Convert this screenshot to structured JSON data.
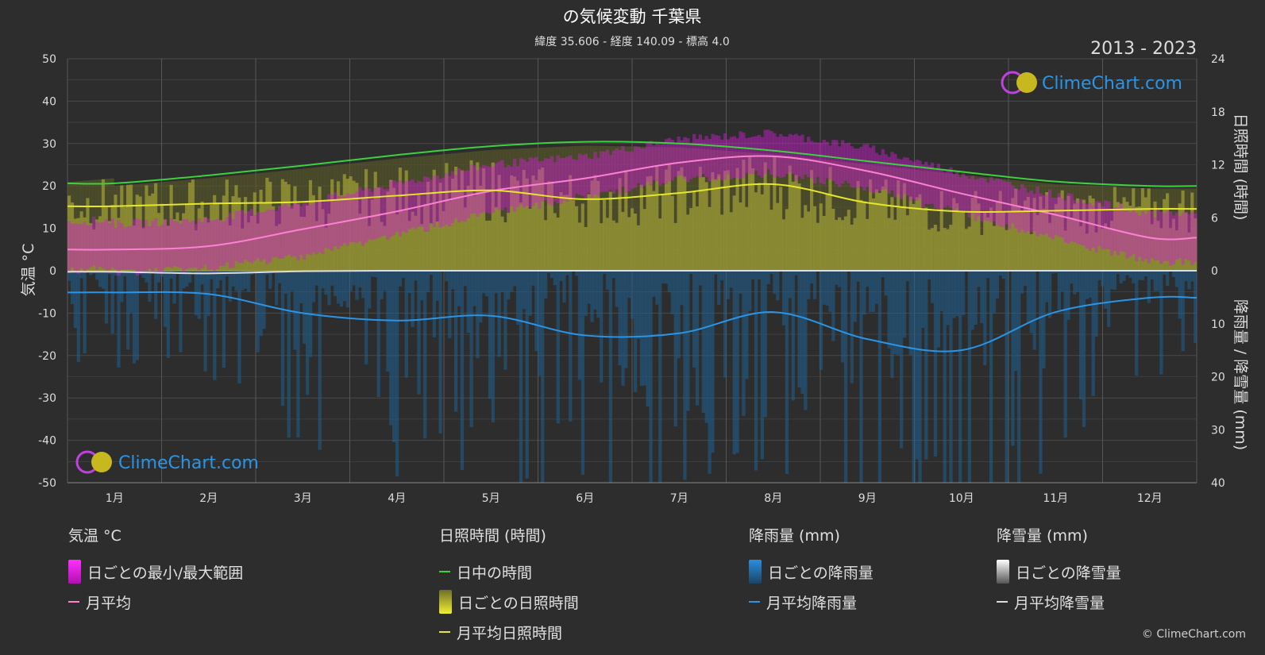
{
  "title": "の気候変動 千葉県",
  "subtitle": "緯度 35.606 - 経度 140.09 - 標高 4.0",
  "year_range": "2013 - 2023",
  "brand": "ClimeChart.com",
  "copyright": "© ClimeChart.com",
  "colors": {
    "background": "#2d2d2d",
    "temp_range": "#d020d0",
    "temp_avg": "#ff7fd5",
    "daylight": "#3ed13e",
    "sunshine_fill": "#9e9e36",
    "sunshine_avg": "#e6e62a",
    "rain_fill": "#1f5f8f",
    "rain_avg": "#2a95e6",
    "snow_avg": "#dddddd"
  },
  "chart_data": {
    "type": "line",
    "categories": [
      "1月",
      "2月",
      "3月",
      "4月",
      "5月",
      "6月",
      "7月",
      "8月",
      "9月",
      "10月",
      "11月",
      "12月"
    ],
    "y_left": {
      "label": "気温 °C",
      "range": [
        -50,
        50
      ],
      "ticks": [
        "50",
        "40",
        "30",
        "20",
        "10",
        "0",
        "-10",
        "-20",
        "-30",
        "-40",
        "-50"
      ]
    },
    "y_right_top": {
      "label": "日照時間 (時間)",
      "range": [
        0,
        24
      ],
      "ticks": [
        "24",
        "18",
        "12",
        "6",
        "0"
      ]
    },
    "y_right_bottom": {
      "label": "降雨量 / 降雪量 (mm)",
      "range": [
        0,
        40
      ],
      "ticks": [
        "10",
        "20",
        "30",
        "40"
      ]
    },
    "series": [
      {
        "name": "月平均",
        "axis": "temperature",
        "values": [
          5.0,
          5.8,
          9.8,
          14.0,
          18.8,
          21.8,
          25.5,
          27.0,
          23.5,
          18.2,
          13.2,
          7.8
        ]
      },
      {
        "name": "日中の時間",
        "axis": "sunshine",
        "values": [
          9.9,
          10.8,
          11.9,
          13.1,
          14.1,
          14.6,
          14.4,
          13.6,
          12.4,
          11.2,
          10.1,
          9.6
        ]
      },
      {
        "name": "月平均日照時間",
        "axis": "sunshine",
        "values": [
          7.3,
          7.6,
          7.8,
          8.5,
          9.1,
          8.1,
          8.8,
          9.8,
          7.7,
          6.7,
          6.8,
          7.0
        ]
      },
      {
        "name": "月平均降雨量",
        "axis": "precipitation",
        "values": [
          4.1,
          4.4,
          8.0,
          9.4,
          8.5,
          12.2,
          11.8,
          7.8,
          12.9,
          15.0,
          7.8,
          5.1
        ]
      },
      {
        "name": "月平均降雪量",
        "axis": "precipitation",
        "values": [
          0.2,
          0.5,
          0.1,
          0.0,
          0.0,
          0.0,
          0.0,
          0.0,
          0.0,
          0.0,
          0.0,
          0.0
        ]
      }
    ],
    "temp_band": {
      "min": [
        0.5,
        1.5,
        4.5,
        9.5,
        14.5,
        18.5,
        22.5,
        24.0,
        20.5,
        14.5,
        8.5,
        3.0
      ],
      "max": [
        10.0,
        11.0,
        15.0,
        19.5,
        24.0,
        26.0,
        30.0,
        31.5,
        28.0,
        22.0,
        17.0,
        12.5
      ]
    },
    "grid": true
  },
  "legend": {
    "temperature": {
      "heading": "気温 °C",
      "items": [
        "日ごとの最小/最大範囲",
        "月平均"
      ]
    },
    "sunshine": {
      "heading": "日照時間 (時間)",
      "items": [
        "日中の時間",
        "日ごとの日照時間",
        "月平均日照時間"
      ]
    },
    "rain": {
      "heading": "降雨量 (mm)",
      "items": [
        "日ごとの降雨量",
        "月平均降雨量"
      ]
    },
    "snow": {
      "heading": "降雪量 (mm)",
      "items": [
        "日ごとの降雪量",
        "月平均降雪量"
      ]
    }
  }
}
